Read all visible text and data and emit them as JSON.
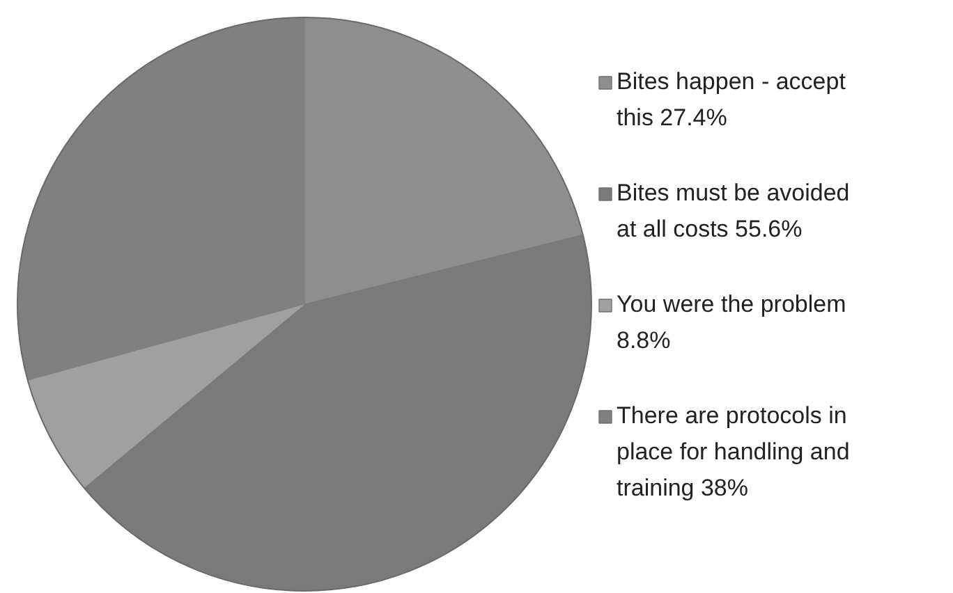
{
  "chart_data": {
    "type": "pie",
    "categories": [
      "Bites happen - accept this",
      "Bites must be avoided at all costs",
      "You were the problem",
      "There are protocols in place for handling and training"
    ],
    "values": [
      27.4,
      55.6,
      8.8,
      38
    ],
    "value_labels": [
      "27.4%",
      "55.6%",
      "8.8%",
      "38%"
    ],
    "colors": [
      "#8e8e8e",
      "#7a7a7a",
      "#a0a0a0",
      "#808080"
    ],
    "legend": "right"
  }
}
